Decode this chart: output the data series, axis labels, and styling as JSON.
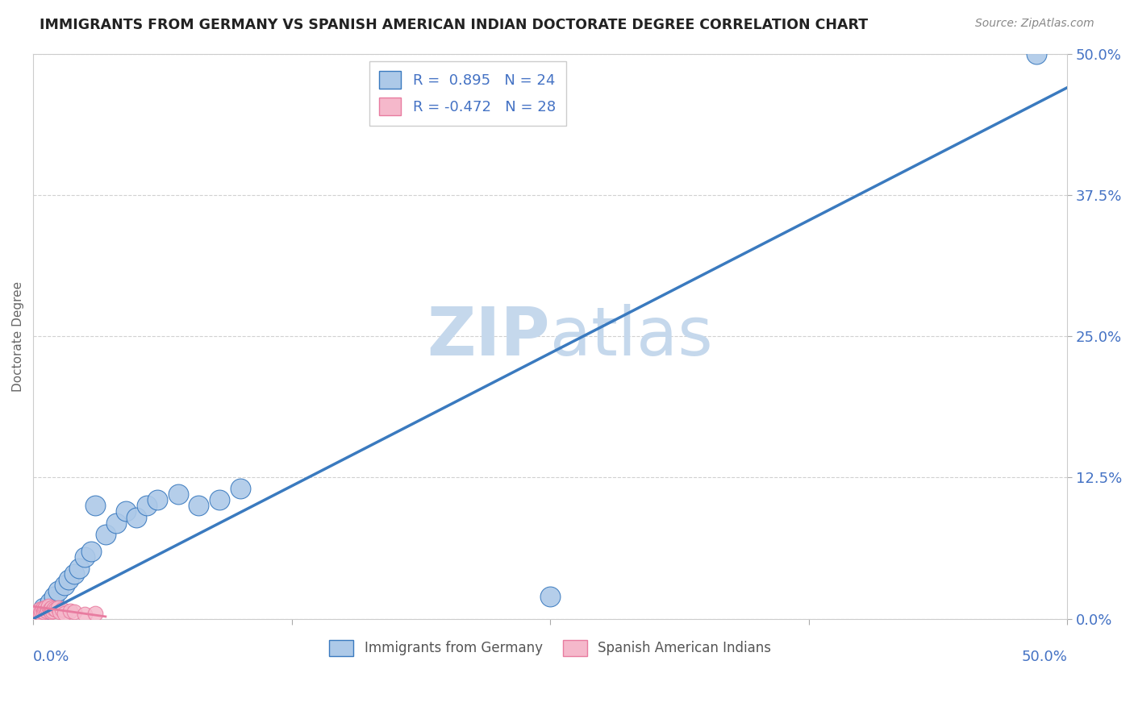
{
  "title": "IMMIGRANTS FROM GERMANY VS SPANISH AMERICAN INDIAN DOCTORATE DEGREE CORRELATION CHART",
  "source": "Source: ZipAtlas.com",
  "ylabel": "Doctorate Degree",
  "yticks": [
    "0.0%",
    "12.5%",
    "25.0%",
    "37.5%",
    "50.0%"
  ],
  "ytick_vals": [
    0.0,
    12.5,
    25.0,
    37.5,
    50.0
  ],
  "xlim": [
    0.0,
    50.0
  ],
  "ylim": [
    0.0,
    50.0
  ],
  "legend_label1": "Immigrants from Germany",
  "legend_label2": "Spanish American Indians",
  "r1": "0.895",
  "n1": "24",
  "r2": "-0.472",
  "n2": "28",
  "blue_color": "#adc9e8",
  "pink_color": "#f5b8cb",
  "blue_line_color": "#3a7abf",
  "pink_line_color": "#e87ca0",
  "title_color": "#222222",
  "stat_color": "#4472c4",
  "watermark_color": "#c5d8ec",
  "blue_scatter_x": [
    0.3,
    0.5,
    0.8,
    1.0,
    1.2,
    1.5,
    1.7,
    2.0,
    2.2,
    2.5,
    2.8,
    3.0,
    3.5,
    4.0,
    4.5,
    5.0,
    5.5,
    6.0,
    7.0,
    8.0,
    9.0,
    10.0,
    25.0,
    48.5
  ],
  "blue_scatter_y": [
    0.5,
    1.0,
    1.5,
    2.0,
    2.5,
    3.0,
    3.5,
    4.0,
    4.5,
    5.5,
    6.0,
    10.0,
    7.5,
    8.5,
    9.5,
    9.0,
    10.0,
    10.5,
    11.0,
    10.0,
    10.5,
    11.5,
    2.0,
    50.0
  ],
  "pink_scatter_x": [
    0.1,
    0.15,
    0.2,
    0.25,
    0.3,
    0.35,
    0.4,
    0.45,
    0.5,
    0.55,
    0.6,
    0.65,
    0.7,
    0.75,
    0.8,
    0.85,
    0.9,
    0.95,
    1.0,
    1.1,
    1.2,
    1.3,
    1.4,
    1.5,
    1.8,
    2.0,
    2.5,
    3.0
  ],
  "pink_scatter_y": [
    0.3,
    0.5,
    0.4,
    0.6,
    0.8,
    0.5,
    0.7,
    0.9,
    0.6,
    0.8,
    1.0,
    0.7,
    0.9,
    1.1,
    0.8,
    0.6,
    1.0,
    0.7,
    0.9,
    0.8,
    1.0,
    0.6,
    0.8,
    0.5,
    0.7,
    0.6,
    0.4,
    0.5
  ],
  "blue_line_x0": 0.0,
  "blue_line_y0": 0.0,
  "blue_line_x1": 50.0,
  "blue_line_y1": 47.0,
  "pink_line_x0": 0.0,
  "pink_line_y0": 1.1,
  "pink_line_x1": 3.5,
  "pink_line_y1": 0.2
}
